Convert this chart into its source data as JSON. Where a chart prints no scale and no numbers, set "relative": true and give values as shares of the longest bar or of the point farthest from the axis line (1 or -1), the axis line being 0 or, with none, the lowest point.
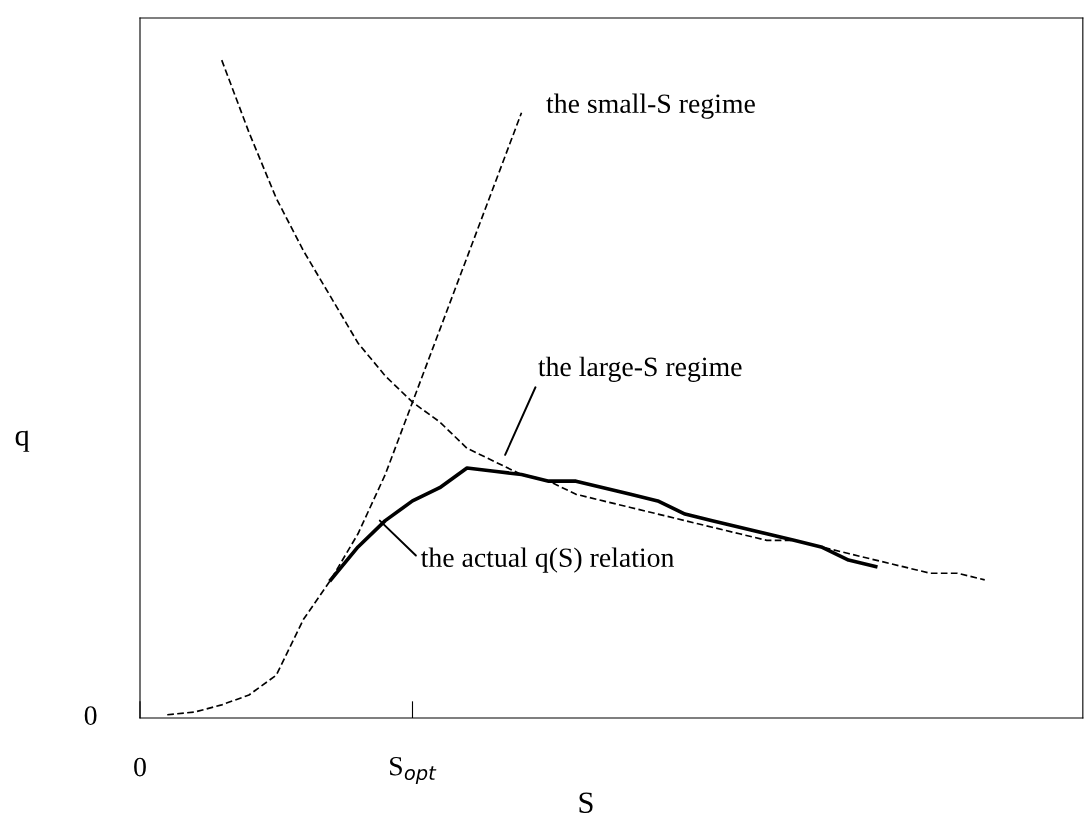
{
  "chart_data": {
    "type": "line",
    "relative": true,
    "xlabel": "S",
    "ylabel": "q",
    "categories": [
      "0",
      null,
      null,
      null,
      null,
      null,
      null,
      null,
      null,
      null,
      "S$_{opt}$",
      null,
      null,
      null,
      null,
      null,
      null,
      null,
      null,
      null,
      null,
      null,
      null,
      null,
      null,
      null,
      null,
      null,
      null,
      null,
      null,
      null,
      null,
      null,
      null
    ],
    "series": [
      {
        "color": "#000000",
        "line_style": "dashed",
        "values": [
          null,
          0.005,
          0.009,
          0.02,
          0.035,
          0.065,
          0.15,
          0.21,
          0.28,
          0.37,
          0.48,
          0.59,
          0.7,
          0.81,
          0.92,
          null,
          null,
          null,
          null,
          null,
          null,
          null,
          null,
          null,
          null,
          null,
          null,
          null,
          null,
          null,
          null,
          null,
          null,
          null,
          null
        ]
      },
      {
        "color": "#000000",
        "line_style": "dashed",
        "values": [
          null,
          null,
          null,
          1.0,
          0.89,
          0.79,
          0.71,
          0.64,
          0.57,
          0.52,
          0.48,
          0.45,
          0.41,
          0.39,
          0.37,
          0.36,
          0.34,
          0.33,
          0.32,
          0.31,
          0.3,
          0.29,
          0.28,
          0.27,
          0.27,
          0.26,
          0.25,
          0.24,
          0.23,
          0.22,
          0.22,
          0.21,
          null,
          null,
          null
        ]
      },
      {
        "color": "#000000",
        "line_style": "solid",
        "values": [
          null,
          null,
          null,
          null,
          null,
          null,
          null,
          0.21,
          0.26,
          0.3,
          0.33,
          0.35,
          0.38,
          0.375,
          0.37,
          0.36,
          0.36,
          0.35,
          0.34,
          0.33,
          0.31,
          0.3,
          0.29,
          0.28,
          0.27,
          0.26,
          0.24,
          0.23,
          null,
          null,
          null,
          null,
          null,
          null,
          null
        ]
      }
    ],
    "annotations": [
      "the small-S regime",
      "the large-S regime",
      "the actual q(S) relation",
      "0"
    ],
    "grid": false,
    "legend": false,
    "marker": "none"
  }
}
